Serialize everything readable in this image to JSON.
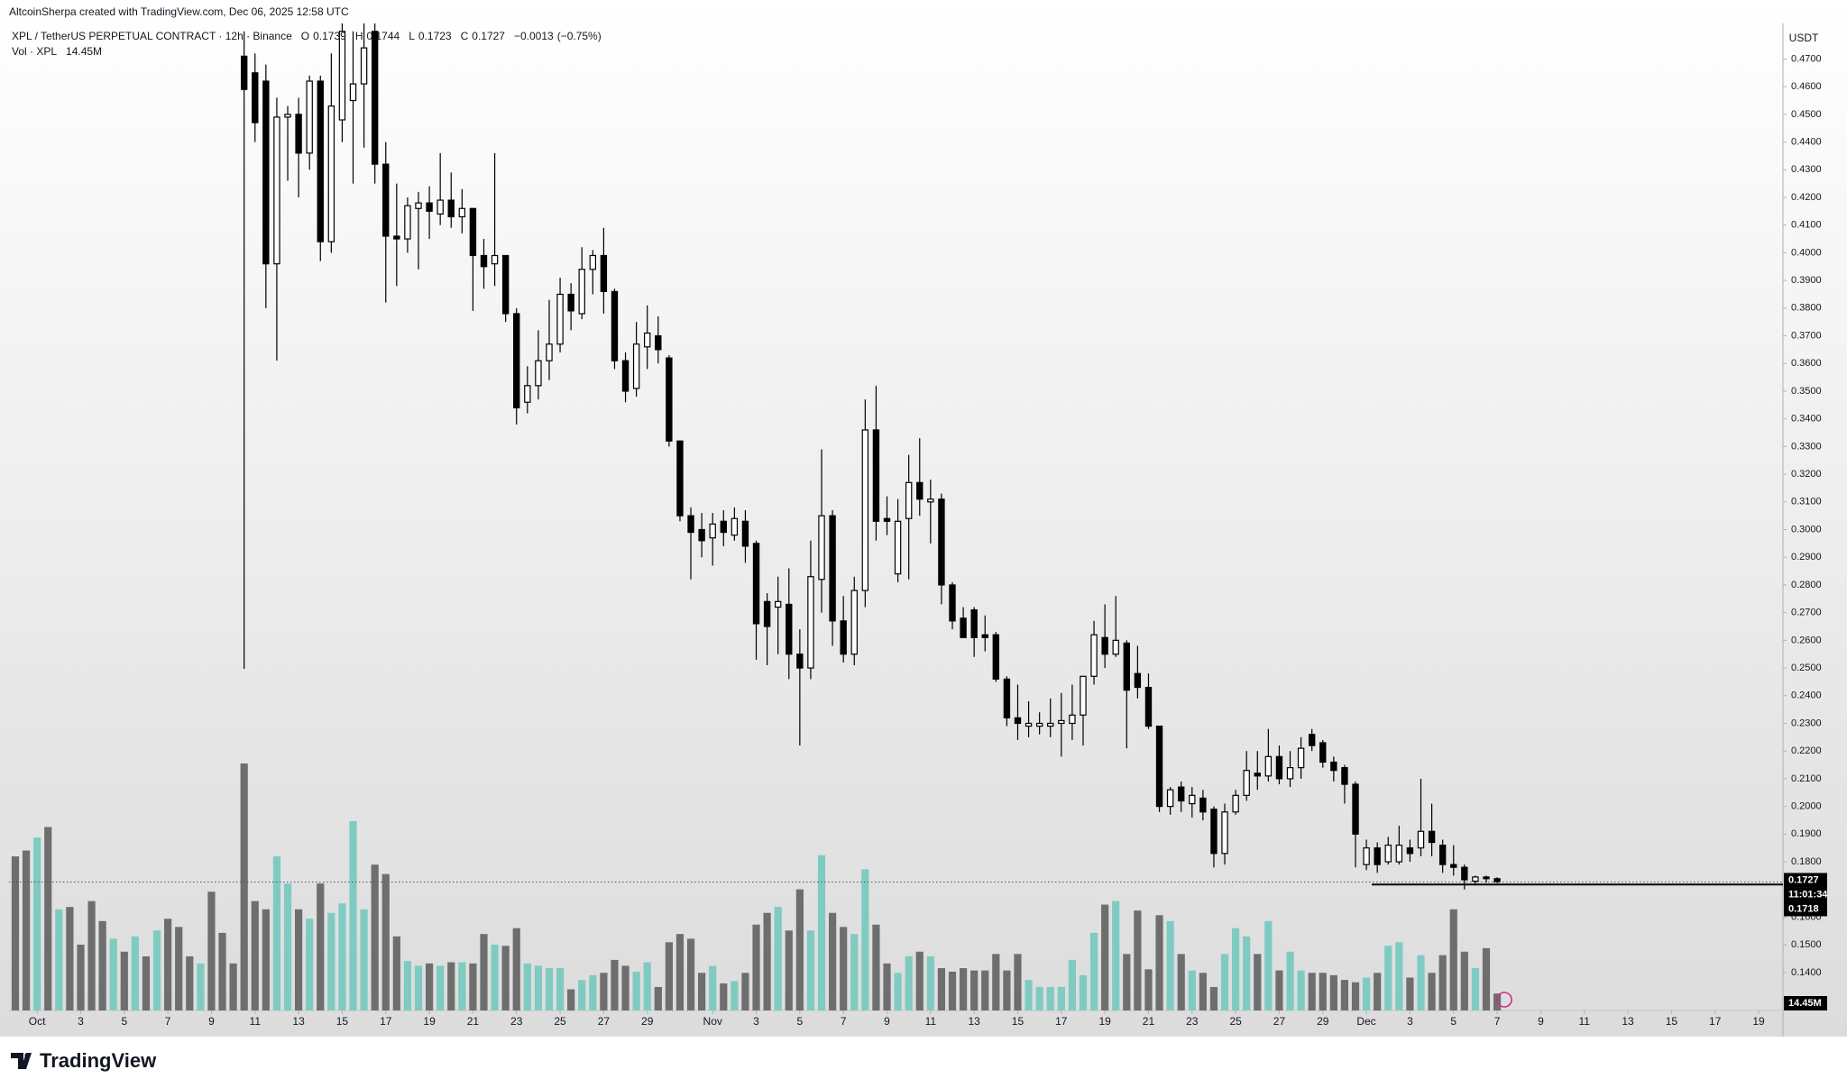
{
  "header": {
    "credit": "AltcoinSherpa created with TradingView.com, Dec 06, 2025 12:58 UTC"
  },
  "chart_data": {
    "type": "candlestick",
    "symbol": "XPL / TetherUS PERPETUAL CONTRACT · 12h · Binance",
    "ohlc_letters": [
      "O",
      "H",
      "L",
      "C"
    ],
    "change": {
      "value": -0.0013,
      "label": "−0.0013"
    },
    "change_pct": {
      "value": -0.75,
      "label": "(−0.75%)"
    },
    "volume_title": "Vol · XPL",
    "volume_label": "14.45M",
    "currency": "USDT",
    "countdown": "11:01:34",
    "up_color": "#7fcbc2",
    "down_color": "#6e6e6e",
    "ohlc": [
      null,
      null,
      null,
      null,
      null,
      null,
      null,
      null,
      null,
      null,
      null,
      null,
      null,
      null,
      null,
      null,
      null,
      null,
      null,
      null,
      null,
      [
        0.471,
        0.48,
        0.2497,
        0.459
      ],
      [
        0.465,
        0.472,
        0.44,
        0.447
      ],
      [
        0.462,
        0.468,
        0.38,
        0.396
      ],
      [
        0.396,
        0.456,
        0.361,
        0.449
      ],
      [
        0.449,
        0.453,
        0.426,
        0.45
      ],
      [
        0.45,
        0.456,
        0.42,
        0.436
      ],
      [
        0.436,
        0.464,
        0.43,
        0.462
      ],
      [
        0.462,
        0.464,
        0.397,
        0.404
      ],
      [
        0.404,
        0.472,
        0.4,
        0.453
      ],
      [
        0.448,
        0.485,
        0.44,
        0.48
      ],
      [
        0.455,
        0.48,
        0.425,
        0.461
      ],
      [
        0.461,
        0.485,
        0.438,
        0.474
      ],
      [
        0.48,
        0.485,
        0.425,
        0.432
      ],
      [
        0.432,
        0.44,
        0.382,
        0.406
      ],
      [
        0.406,
        0.425,
        0.388,
        0.405
      ],
      [
        0.405,
        0.42,
        0.4,
        0.417
      ],
      [
        0.416,
        0.422,
        0.394,
        0.418
      ],
      [
        0.418,
        0.424,
        0.405,
        0.415
      ],
      [
        0.414,
        0.436,
        0.41,
        0.419
      ],
      [
        0.419,
        0.429,
        0.409,
        0.413
      ],
      [
        0.413,
        0.423,
        0.407,
        0.416
      ],
      [
        0.416,
        0.416,
        0.379,
        0.399
      ],
      [
        0.399,
        0.405,
        0.387,
        0.395
      ],
      [
        0.396,
        0.436,
        0.388,
        0.399
      ],
      [
        0.399,
        0.399,
        0.375,
        0.378
      ],
      [
        0.378,
        0.38,
        0.338,
        0.344
      ],
      [
        0.346,
        0.359,
        0.342,
        0.352
      ],
      [
        0.352,
        0.372,
        0.347,
        0.361
      ],
      [
        0.361,
        0.383,
        0.354,
        0.367
      ],
      [
        0.367,
        0.391,
        0.364,
        0.385
      ],
      [
        0.385,
        0.389,
        0.372,
        0.379
      ],
      [
        0.378,
        0.402,
        0.376,
        0.394
      ],
      [
        0.394,
        0.401,
        0.385,
        0.399
      ],
      [
        0.399,
        0.409,
        0.378,
        0.386
      ],
      [
        0.386,
        0.387,
        0.358,
        0.361
      ],
      [
        0.361,
        0.364,
        0.346,
        0.35
      ],
      [
        0.351,
        0.375,
        0.348,
        0.367
      ],
      [
        0.366,
        0.381,
        0.358,
        0.371
      ],
      [
        0.37,
        0.377,
        0.36,
        0.365
      ],
      [
        0.362,
        0.363,
        0.33,
        0.332
      ],
      [
        0.332,
        0.332,
        0.303,
        0.305
      ],
      [
        0.305,
        0.308,
        0.282,
        0.299
      ],
      [
        0.3,
        0.306,
        0.29,
        0.296
      ],
      [
        0.297,
        0.306,
        0.287,
        0.302
      ],
      [
        0.303,
        0.307,
        0.294,
        0.299
      ],
      [
        0.298,
        0.308,
        0.296,
        0.304
      ],
      [
        0.303,
        0.307,
        0.288,
        0.294
      ],
      [
        0.295,
        0.296,
        0.253,
        0.266
      ],
      [
        0.274,
        0.277,
        0.251,
        0.265
      ],
      [
        0.272,
        0.283,
        0.255,
        0.274
      ],
      [
        0.273,
        0.286,
        0.246,
        0.255
      ],
      [
        0.255,
        0.264,
        0.222,
        0.25
      ],
      [
        0.25,
        0.296,
        0.246,
        0.283
      ],
      [
        0.282,
        0.329,
        0.27,
        0.305
      ],
      [
        0.305,
        0.307,
        0.258,
        0.267
      ],
      [
        0.267,
        0.276,
        0.252,
        0.255
      ],
      [
        0.255,
        0.283,
        0.251,
        0.278
      ],
      [
        0.278,
        0.347,
        0.272,
        0.336
      ],
      [
        0.336,
        0.352,
        0.296,
        0.303
      ],
      [
        0.304,
        0.312,
        0.298,
        0.303
      ],
      [
        0.284,
        0.311,
        0.281,
        0.303
      ],
      [
        0.304,
        0.327,
        0.282,
        0.317
      ],
      [
        0.317,
        0.333,
        0.305,
        0.311
      ],
      [
        0.31,
        0.318,
        0.295,
        0.311
      ],
      [
        0.311,
        0.313,
        0.273,
        0.28
      ],
      [
        0.28,
        0.281,
        0.264,
        0.267
      ],
      [
        0.268,
        0.272,
        0.261,
        0.261
      ],
      [
        0.271,
        0.272,
        0.254,
        0.261
      ],
      [
        0.262,
        0.269,
        0.256,
        0.261
      ],
      [
        0.262,
        0.263,
        0.245,
        0.246
      ],
      [
        0.246,
        0.247,
        0.229,
        0.232
      ],
      [
        0.232,
        0.244,
        0.224,
        0.23
      ],
      [
        0.229,
        0.238,
        0.225,
        0.23
      ],
      [
        0.229,
        0.234,
        0.226,
        0.23
      ],
      [
        0.229,
        0.239,
        0.225,
        0.23
      ],
      [
        0.23,
        0.241,
        0.218,
        0.231
      ],
      [
        0.23,
        0.244,
        0.224,
        0.233
      ],
      [
        0.233,
        0.247,
        0.222,
        0.247
      ],
      [
        0.247,
        0.267,
        0.244,
        0.262
      ],
      [
        0.261,
        0.273,
        0.25,
        0.255
      ],
      [
        0.255,
        0.276,
        0.254,
        0.26
      ],
      [
        0.259,
        0.26,
        0.221,
        0.242
      ],
      [
        0.248,
        0.258,
        0.239,
        0.243
      ],
      [
        0.243,
        0.248,
        0.228,
        0.229
      ],
      [
        0.229,
        0.229,
        0.198,
        0.2
      ],
      [
        0.2,
        0.207,
        0.197,
        0.206
      ],
      [
        0.207,
        0.209,
        0.198,
        0.202
      ],
      [
        0.201,
        0.207,
        0.196,
        0.204
      ],
      [
        0.203,
        0.206,
        0.195,
        0.198
      ],
      [
        0.199,
        0.2,
        0.178,
        0.183
      ],
      [
        0.183,
        0.201,
        0.179,
        0.198
      ],
      [
        0.198,
        0.206,
        0.197,
        0.204
      ],
      [
        0.204,
        0.22,
        0.202,
        0.213
      ],
      [
        0.212,
        0.22,
        0.206,
        0.211
      ],
      [
        0.211,
        0.228,
        0.209,
        0.218
      ],
      [
        0.218,
        0.222,
        0.208,
        0.21
      ],
      [
        0.21,
        0.22,
        0.207,
        0.214
      ],
      [
        0.214,
        0.225,
        0.21,
        0.221
      ],
      [
        0.226,
        0.228,
        0.22,
        0.222
      ],
      [
        0.223,
        0.224,
        0.214,
        0.216
      ],
      [
        0.216,
        0.218,
        0.209,
        0.213
      ],
      [
        0.214,
        0.215,
        0.201,
        0.208
      ],
      [
        0.208,
        0.209,
        0.178,
        0.19
      ],
      [
        0.179,
        0.188,
        0.177,
        0.185
      ],
      [
        0.185,
        0.187,
        0.176,
        0.179
      ],
      [
        0.18,
        0.189,
        0.179,
        0.186
      ],
      [
        0.18,
        0.193,
        0.179,
        0.186
      ],
      [
        0.185,
        0.188,
        0.18,
        0.183
      ],
      [
        0.185,
        0.21,
        0.182,
        0.191
      ],
      [
        0.191,
        0.201,
        0.182,
        0.187
      ],
      [
        0.186,
        0.188,
        0.176,
        0.179
      ],
      [
        0.179,
        0.186,
        0.175,
        0.178
      ],
      [
        0.178,
        0.179,
        0.17,
        0.1735
      ],
      [
        0.173,
        0.175,
        0.172,
        0.1745
      ],
      [
        0.1745,
        0.175,
        0.1725,
        0.1739
      ],
      [
        0.1739,
        0.1744,
        0.1723,
        0.1727
      ]
    ],
    "volume": [
      131,
      136,
      147,
      156,
      86,
      88,
      56,
      93,
      76,
      61,
      50,
      63,
      46,
      68,
      78,
      71,
      46,
      40,
      101,
      66,
      40,
      210,
      93,
      86,
      131,
      108,
      86,
      78,
      108,
      83,
      91,
      161,
      86,
      124,
      116,
      63,
      42,
      38,
      40,
      38,
      41,
      41,
      40,
      65,
      56,
      55,
      70,
      40,
      38,
      36,
      36,
      18,
      26,
      30,
      32,
      43,
      38,
      33,
      41,
      20,
      58,
      65,
      61,
      32,
      38,
      23,
      25,
      32,
      73,
      83,
      88,
      68,
      103,
      68,
      132,
      83,
      71,
      65,
      120,
      73,
      40,
      32,
      46,
      50,
      46,
      36,
      33,
      36,
      34,
      34,
      48,
      34,
      48,
      26,
      20,
      20,
      20,
      43,
      30,
      66,
      90,
      93,
      48,
      85,
      35,
      81,
      76,
      48,
      34,
      32,
      20,
      48,
      70,
      63,
      48,
      76,
      34,
      50,
      34,
      32,
      32,
      30,
      26,
      24,
      28,
      32,
      55,
      58,
      28,
      47,
      32,
      47,
      86,
      50,
      36,
      53,
      14.45
    ],
    "early_volume_up": [
      false,
      false,
      true,
      false,
      true,
      false,
      false,
      false,
      false,
      true,
      false,
      true,
      false,
      true,
      false,
      false,
      false,
      true,
      false,
      false,
      false
    ],
    "ylim": [
      0.1264,
      0.4828
    ],
    "yticks": [
      {
        "value": 0.14,
        "label": "0.1400"
      },
      {
        "value": 0.15,
        "label": "0.1500"
      },
      {
        "value": 0.16,
        "label": "0.1600"
      },
      {
        "value": 0.17,
        "label": "0.1700"
      },
      {
        "value": 0.18,
        "label": "0.1800"
      },
      {
        "value": 0.19,
        "label": "0.1900"
      },
      {
        "value": 0.2,
        "label": "0.2000"
      },
      {
        "value": 0.21,
        "label": "0.2100"
      },
      {
        "value": 0.22,
        "label": "0.2200"
      },
      {
        "value": 0.23,
        "label": "0.2300"
      },
      {
        "value": 0.24,
        "label": "0.2400"
      },
      {
        "value": 0.25,
        "label": "0.2500"
      },
      {
        "value": 0.26,
        "label": "0.2600"
      },
      {
        "value": 0.27,
        "label": "0.2700"
      },
      {
        "value": 0.28,
        "label": "0.2800"
      },
      {
        "value": 0.29,
        "label": "0.2900"
      },
      {
        "value": 0.3,
        "label": "0.3000"
      },
      {
        "value": 0.31,
        "label": "0.3100"
      },
      {
        "value": 0.32,
        "label": "0.3200"
      },
      {
        "value": 0.33,
        "label": "0.3300"
      },
      {
        "value": 0.34,
        "label": "0.3400"
      },
      {
        "value": 0.35,
        "label": "0.3500"
      },
      {
        "value": 0.36,
        "label": "0.3600"
      },
      {
        "value": 0.37,
        "label": "0.3700"
      },
      {
        "value": 0.38,
        "label": "0.3800"
      },
      {
        "value": 0.39,
        "label": "0.3900"
      },
      {
        "value": 0.4,
        "label": "0.4000"
      },
      {
        "value": 0.41,
        "label": "0.4100"
      },
      {
        "value": 0.42,
        "label": "0.4200"
      },
      {
        "value": 0.43,
        "label": "0.4300"
      },
      {
        "value": 0.44,
        "label": "0.4400"
      },
      {
        "value": 0.45,
        "label": "0.4500"
      },
      {
        "value": 0.46,
        "label": "0.4600"
      },
      {
        "value": 0.47,
        "label": "0.4700"
      }
    ],
    "xticks": [
      {
        "value": 2,
        "label": "Oct"
      },
      {
        "value": 6,
        "label": "3"
      },
      {
        "value": 10,
        "label": "5"
      },
      {
        "value": 14,
        "label": "7"
      },
      {
        "value": 18,
        "label": "9"
      },
      {
        "value": 22,
        "label": "11"
      },
      {
        "value": 26,
        "label": "13"
      },
      {
        "value": 30,
        "label": "15"
      },
      {
        "value": 34,
        "label": "17"
      },
      {
        "value": 38,
        "label": "19"
      },
      {
        "value": 42,
        "label": "21"
      },
      {
        "value": 46,
        "label": "23"
      },
      {
        "value": 50,
        "label": "25"
      },
      {
        "value": 54,
        "label": "27"
      },
      {
        "value": 58,
        "label": "29"
      },
      {
        "value": 64,
        "label": "Nov"
      },
      {
        "value": 68,
        "label": "3"
      },
      {
        "value": 72,
        "label": "5"
      },
      {
        "value": 76,
        "label": "7"
      },
      {
        "value": 80,
        "label": "9"
      },
      {
        "value": 84,
        "label": "11"
      },
      {
        "value": 88,
        "label": "13"
      },
      {
        "value": 92,
        "label": "15"
      },
      {
        "value": 96,
        "label": "17"
      },
      {
        "value": 100,
        "label": "19"
      },
      {
        "value": 104,
        "label": "21"
      },
      {
        "value": 108,
        "label": "23"
      },
      {
        "value": 112,
        "label": "25"
      },
      {
        "value": 116,
        "label": "27"
      },
      {
        "value": 120,
        "label": "29"
      },
      {
        "value": 124,
        "label": "Dec"
      },
      {
        "value": 128,
        "label": "3"
      },
      {
        "value": 132,
        "label": "5"
      },
      {
        "value": 136,
        "label": "7"
      },
      {
        "value": 140,
        "label": "9"
      },
      {
        "value": 144,
        "label": "11"
      },
      {
        "value": 148,
        "label": "13"
      },
      {
        "value": 152,
        "label": "15"
      },
      {
        "value": 156,
        "label": "17"
      },
      {
        "value": 160,
        "label": "19"
      }
    ],
    "hline": {
      "value": 0.1718,
      "from": 124.5
    }
  },
  "branding": {
    "logo": "TradingView"
  }
}
